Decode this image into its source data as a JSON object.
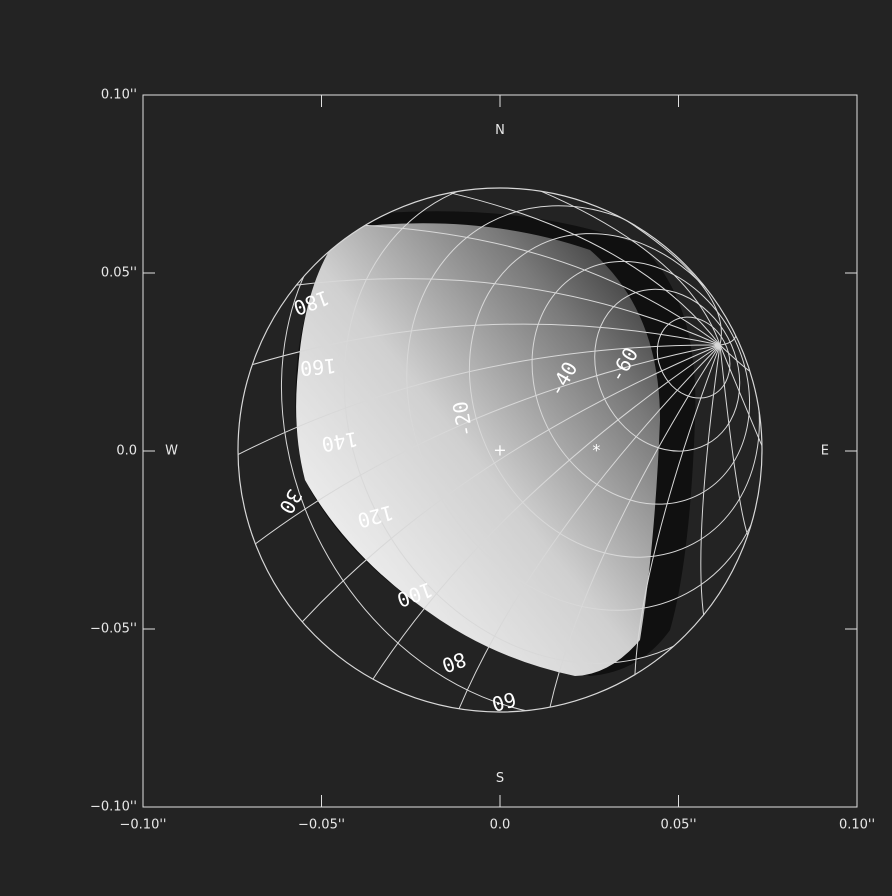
{
  "chart_data": {
    "type": "image",
    "xlim": [
      -0.1,
      0.1
    ],
    "ylim": [
      -0.1,
      0.1
    ],
    "xticks": [
      {
        "value": -0.1,
        "label": "−0.10''"
      },
      {
        "value": -0.05,
        "label": "−0.05''"
      },
      {
        "value": 0,
        "label": "0.0"
      },
      {
        "value": 0.05,
        "label": "0.05''"
      },
      {
        "value": 0.1,
        "label": "0.10''"
      }
    ],
    "yticks": [
      {
        "value": -0.1,
        "label": "−0.10''"
      },
      {
        "value": -0.05,
        "label": "−0.05''"
      },
      {
        "value": 0,
        "label": "0.0"
      },
      {
        "value": 0.05,
        "label": "0.05''"
      },
      {
        "value": 0.1,
        "label": "0.10''"
      }
    ],
    "annotations": [
      {
        "text": "N",
        "x": 0,
        "y": 0.09
      },
      {
        "text": "S",
        "x": 0,
        "y": -0.092
      },
      {
        "text": "W",
        "x": -0.092,
        "y": 0
      },
      {
        "text": "E",
        "x": 0.091,
        "y": 0
      },
      {
        "text": "180",
        "x": -0.053,
        "y": 0.042
      },
      {
        "text": "160",
        "x": -0.051,
        "y": 0.024
      },
      {
        "text": "140",
        "x": -0.045,
        "y": 0.003
      },
      {
        "text": "120",
        "x": -0.035,
        "y": -0.018
      },
      {
        "text": "100",
        "x": -0.024,
        "y": -0.04
      },
      {
        "text": "80",
        "x": -0.013,
        "y": -0.059
      },
      {
        "text": "60",
        "x": 0.001,
        "y": -0.07
      },
      {
        "text": "30",
        "x": -0.059,
        "y": -0.014
      },
      {
        "text": "-20",
        "x": -0.01,
        "y": 0.009
      },
      {
        "text": "-40",
        "x": 0.018,
        "y": 0.02
      },
      {
        "text": "-60",
        "x": 0.035,
        "y": 0.024
      }
    ],
    "markers": {
      "symbols": [
        "+",
        "*"
      ],
      "x": [
        0,
        0.027
      ],
      "y": [
        0,
        0
      ]
    }
  }
}
